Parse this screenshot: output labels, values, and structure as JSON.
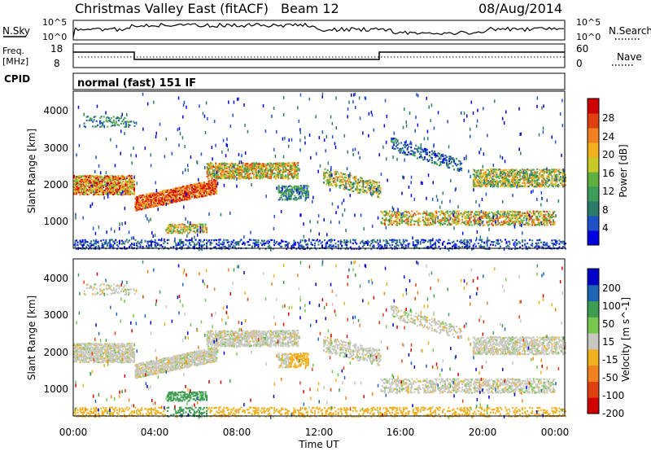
{
  "header": {
    "title": "Christmas Valley East (fitACF)",
    "beam": "Beam 12",
    "date": "08/Aug/2014"
  },
  "panels": {
    "nsky_label": "N.Sky",
    "nsearch_label": "N.Search",
    "freq_label_line1": "Freq.",
    "freq_label_line2": "[MHz]",
    "nave_label": "Nave",
    "cpid_label": "CPID",
    "cpid_value": "normal (fast) 151 IF",
    "noise_ticks_left": [
      "10^5",
      "10^0"
    ],
    "noise_ticks_right": [
      "10^5",
      "10^0"
    ],
    "freq_ticks": [
      "18",
      "8"
    ],
    "nave_ticks": [
      "60",
      "0"
    ]
  },
  "chart_data": [
    {
      "type": "heatmap",
      "name": "power-panel",
      "ylabel": "Slant Range [km]",
      "yticks": [
        "4000",
        "3000",
        "2000",
        "1000"
      ],
      "ylim": [
        180,
        4500
      ],
      "xlim": [
        0,
        24
      ],
      "colorbar": {
        "label": "Power [dB]",
        "ticks": [
          "28",
          "24",
          "20",
          "16",
          "12",
          "8",
          "4"
        ],
        "colors": [
          "#0000e0",
          "#1e50c8",
          "#2d7a6a",
          "#3c9c5a",
          "#60b040",
          "#c8c828",
          "#f0b020",
          "#f08020",
          "#e04010",
          "#d00000"
        ]
      }
    },
    {
      "type": "heatmap",
      "name": "velocity-panel",
      "ylabel": "Slant Range [km]",
      "yticks": [
        "4000",
        "3000",
        "2000",
        "1000"
      ],
      "ylim": [
        180,
        4500
      ],
      "xlim": [
        0,
        24
      ],
      "colorbar": {
        "label": "Velocity [m s^-1]",
        "ticks": [
          "200",
          "100",
          "50",
          "15",
          "-15",
          "-50",
          "-100",
          "-200"
        ],
        "colors": [
          "#0000c8",
          "#1e64b4",
          "#3c9c50",
          "#78c850",
          "#c8c8c0",
          "#f0b020",
          "#f08020",
          "#e04010",
          "#d00000"
        ]
      }
    }
  ],
  "xaxis": {
    "label": "Time UT",
    "ticks": [
      "00:00",
      "04:00",
      "08:00",
      "12:00",
      "16:00",
      "20:00",
      "00:00"
    ]
  }
}
